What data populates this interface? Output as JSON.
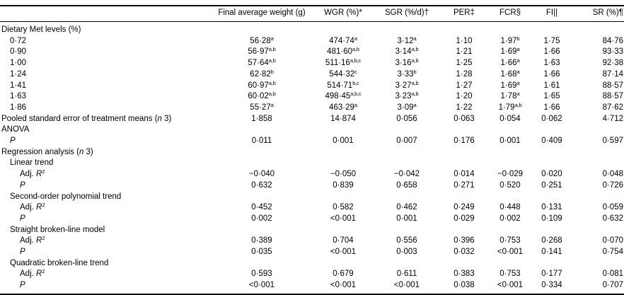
{
  "colors": {
    "background": "#ffffff",
    "text": "#000000",
    "rule": "#000000"
  },
  "table": {
    "columns": [
      "",
      "Final average weight (g)",
      "WGR (%)*",
      "SGR (%/d)†",
      "PER‡",
      "FCR§",
      "FI||",
      "SR (%)¶"
    ],
    "rows": [
      {
        "label": "Dietary Met levels (%)",
        "indent": 0,
        "values": null
      },
      {
        "label": "0·72",
        "indent": 1,
        "values": [
          "56·28^a^",
          "474·74^a^",
          "3·12^a^",
          "1·10",
          "1·97^b^",
          "1·75",
          "84·76"
        ]
      },
      {
        "label": "0·90",
        "indent": 1,
        "values": [
          "56·97^a,b^",
          "481·60^a,b^",
          "3·14^a,b^",
          "1·21",
          "1·69^a^",
          "1·66",
          "93·33"
        ]
      },
      {
        "label": "1·00",
        "indent": 1,
        "values": [
          "57·64^a,b^",
          "511·16^a,b,c^",
          "3·16^a,b^",
          "1·25",
          "1·66^a^",
          "1·63",
          "92·38"
        ]
      },
      {
        "label": "1·24",
        "indent": 1,
        "values": [
          "62·82^b^",
          "544·32^c^",
          "3·33^b^",
          "1·28",
          "1·68^a^",
          "1·66",
          "87·14"
        ]
      },
      {
        "label": "1·41",
        "indent": 1,
        "values": [
          "60·97^a,b^",
          "514·71^b,c^",
          "3·27^a,b^",
          "1·27",
          "1·69^a^",
          "1·61",
          "88·57"
        ]
      },
      {
        "label": "1·63",
        "indent": 1,
        "values": [
          "60·02^a,b^",
          "498·45^a,b,c^",
          "3·23^a,b^",
          "1·20",
          "1·78^a^",
          "1·65",
          "88·57"
        ]
      },
      {
        "label": "1·86",
        "indent": 1,
        "values": [
          "55·27^a^",
          "463·29^a^",
          "3·09^a^",
          "1·22",
          "1·79^a,b^",
          "1·66",
          "87·62"
        ]
      },
      {
        "label": "Pooled standard error of treatment means (*n* 3)",
        "indent": 0,
        "values": [
          "1·858",
          "14·874",
          "0·056",
          "0·063",
          "0·054",
          "0·062",
          "4·712"
        ]
      },
      {
        "label": "ANOVA",
        "indent": 0,
        "values": null
      },
      {
        "label": "*P*",
        "indent": 1,
        "values": [
          "0·011",
          "0·001",
          "0·007",
          "0·176",
          "0·001",
          "0·409",
          "0·597"
        ]
      },
      {
        "label": "Regression analysis (*n* 3)",
        "indent": 0,
        "values": null
      },
      {
        "label": "Linear trend",
        "indent": 1,
        "values": null
      },
      {
        "label": "Adj. *R*^2^",
        "indent": 2,
        "values": [
          "−0·040",
          "−0·050",
          "−0·042",
          "0·014",
          "−0·029",
          "0·020",
          "0·048"
        ]
      },
      {
        "label": "*P*",
        "indent": 2,
        "values": [
          "0·632",
          "0·839",
          "0·658",
          "0·271",
          "0·520",
          "0·251",
          "0·726"
        ]
      },
      {
        "label": "Second-order polynomial trend",
        "indent": 1,
        "values": null
      },
      {
        "label": "Adj. *R*^2^",
        "indent": 2,
        "values": [
          "0·452",
          "0·582",
          "0·462",
          "0·249",
          "0·448",
          "0·131",
          "0·059"
        ]
      },
      {
        "label": "*P*",
        "indent": 2,
        "values": [
          "0·002",
          "<0·001",
          "0·001",
          "0·029",
          "0·002",
          "0·109",
          "0·632"
        ]
      },
      {
        "label": "Straight broken-line model",
        "indent": 1,
        "values": null
      },
      {
        "label": "Adj. *R*^2^",
        "indent": 2,
        "values": [
          "0·389",
          "0·704",
          "0·556",
          "0·396",
          "0·753",
          "0·268",
          "0·070"
        ]
      },
      {
        "label": "*P*",
        "indent": 2,
        "values": [
          "0·035",
          "<0·001",
          "0·003",
          "0·032",
          "<0·001",
          "0·141",
          "0·754"
        ]
      },
      {
        "label": "Quadratic broken-line trend",
        "indent": 1,
        "values": null
      },
      {
        "label": "Adj. *R*^2^",
        "indent": 2,
        "values": [
          "0·593",
          "0·679",
          "0·611",
          "0·383",
          "0·753",
          "0·177",
          "0·081"
        ]
      },
      {
        "label": "*P*",
        "indent": 2,
        "values": [
          "<0·001",
          "<0·001",
          "<0·001",
          "0·038",
          "<0·001",
          "0·334",
          "0·707"
        ]
      }
    ]
  }
}
